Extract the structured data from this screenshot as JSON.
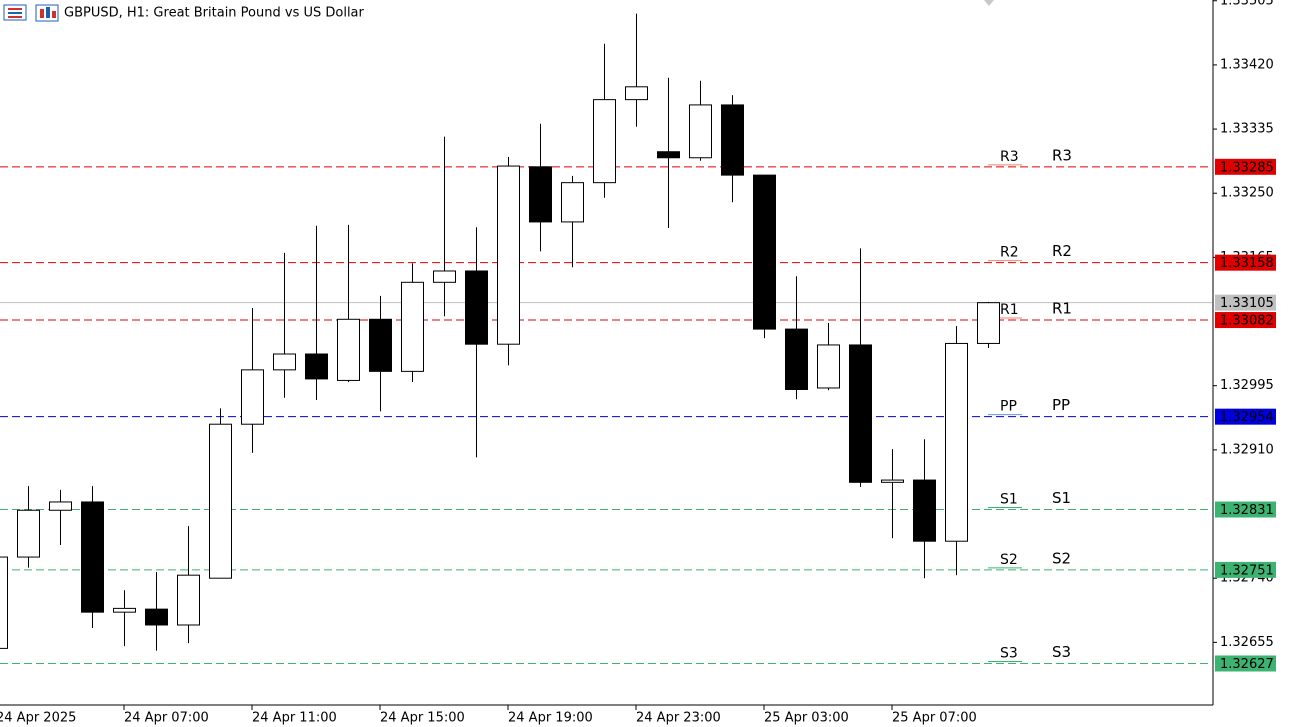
{
  "chart_data": {
    "type": "candlestick",
    "title": "GBPUSD, H1:  Great Britain Pound vs US Dollar",
    "categories": [
      "24 Apr 2025",
      null,
      null,
      null,
      "24 Apr 07:00",
      null,
      null,
      null,
      "24 Apr 11:00",
      null,
      null,
      null,
      "24 Apr 15:00",
      null,
      null,
      null,
      "24 Apr 19:00",
      null,
      null,
      null,
      "24 Apr 23:00",
      null,
      null,
      null,
      "25 Apr 03:00",
      null,
      null,
      null,
      "25 Apr 07:00",
      null,
      null,
      null
    ],
    "open": [
      1.32647,
      1.32768,
      1.3283,
      1.32841,
      1.32695,
      1.32699,
      1.32678,
      1.3274,
      1.32944,
      1.33016,
      1.33037,
      1.33002,
      1.33083,
      1.33014,
      1.33132,
      1.33147,
      1.3305,
      1.33285,
      1.33212,
      1.33264,
      1.33374,
      1.33305,
      1.33297,
      1.33367,
      1.33274,
      1.3307,
      1.32992,
      1.33049,
      1.32867,
      1.3287,
      1.32789,
      1.33051
    ],
    "high": [
      1.32768,
      1.32862,
      1.32857,
      1.32862,
      1.32724,
      1.32748,
      1.32809,
      1.32965,
      1.33098,
      1.33171,
      1.33207,
      1.33208,
      1.33114,
      1.33157,
      1.33325,
      1.33205,
      1.33298,
      1.33342,
      1.33273,
      1.33448,
      1.33488,
      1.33403,
      1.33399,
      1.3338,
      1.33274,
      1.3314,
      1.33078,
      1.33177,
      1.32911,
      1.32924,
      1.33074,
      1.33106
    ],
    "low": [
      1.32647,
      1.32754,
      1.32784,
      1.32674,
      1.3265,
      1.32644,
      1.32654,
      1.3274,
      1.32906,
      1.32979,
      1.32976,
      1.33,
      1.32961,
      1.33,
      1.33087,
      1.329,
      1.33022,
      1.33173,
      1.33152,
      1.33244,
      1.33338,
      1.33204,
      1.33293,
      1.33238,
      1.33058,
      1.32977,
      1.32989,
      1.32861,
      1.32793,
      1.3274,
      1.32744,
      1.33045
    ],
    "close": [
      1.32768,
      1.3283,
      1.32841,
      1.32695,
      1.327,
      1.32678,
      1.32744,
      1.32944,
      1.33016,
      1.33037,
      1.33004,
      1.33083,
      1.33014,
      1.33132,
      1.33147,
      1.3305,
      1.33286,
      1.33212,
      1.33264,
      1.33374,
      1.33391,
      1.33297,
      1.33367,
      1.33274,
      1.3307,
      1.3299,
      1.33049,
      1.32867,
      1.3287,
      1.32789,
      1.33051,
      1.33105
    ],
    "up_color": "#ffffff",
    "down_color": "#000000",
    "ylim": [
      1.32572,
      1.33506
    ],
    "yticks": [
      1.33505,
      {
        "value": 1.3342,
        "label": "1.33420"
      },
      1.33335,
      {
        "value": 1.3325,
        "label": "1.33250"
      },
      1.33165,
      1.32995,
      {
        "value": 1.3291,
        "label": "1.32910"
      },
      {
        "value": 1.3274,
        "label": "1.32740"
      },
      1.32655
    ],
    "current_price": {
      "value": 1.33105,
      "color": "#c0c0c0"
    },
    "levels": [
      {
        "name": "R3",
        "value": 1.33285,
        "color": "#e00000",
        "light_color": "#f08070"
      },
      {
        "name": "R2",
        "value": 1.33158,
        "color": "#e00000",
        "light_color": "#f08070"
      },
      {
        "name": "R1",
        "value": 1.33082,
        "color": "#e00000",
        "light_color": "#f08070"
      },
      {
        "name": "PP",
        "value": 1.32954,
        "color": "#0000dd",
        "light_color": "#6495ed"
      },
      {
        "name": "S1",
        "value": 1.32831,
        "color": "#3cb371",
        "light_color": "#3cb371"
      },
      {
        "name": "S2",
        "value": 1.32751,
        "color": "#3cb371",
        "light_color": "#3cb371"
      },
      {
        "name": "S3",
        "value": 1.32627,
        "color": "#3cb371",
        "light_color": "#3cb371"
      }
    ]
  }
}
